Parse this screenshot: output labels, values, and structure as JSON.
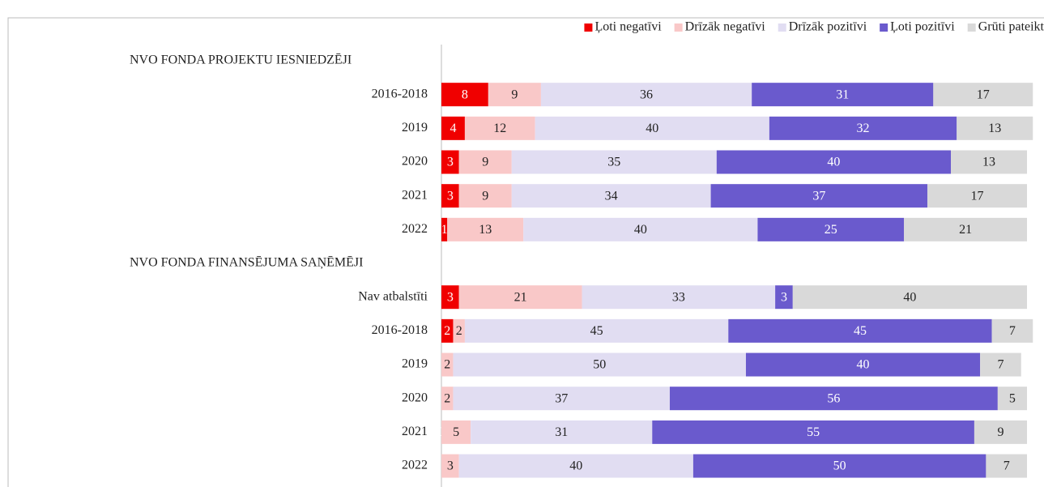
{
  "chart_data": {
    "type": "stacked-bar",
    "categories": [
      "NVO FONDA PROJEKTU IESNIEDZĒJI",
      "2016-2018",
      "2019",
      "2020",
      "2021",
      "2022",
      "NVO FONDA FINANSĒJUMA SAŅĒMĒJI",
      "Nav atbalstīti",
      "2016-2018",
      "2019",
      "2020",
      "2021",
      "2022"
    ],
    "xlim": [
      0,
      100
    ],
    "series": [
      {
        "name": "Ļoti negatīvi",
        "color": "#f00000",
        "values": [
          null,
          8,
          4,
          3,
          3,
          1,
          null,
          3,
          2,
          null,
          null,
          0,
          null
        ]
      },
      {
        "name": "Drīzāk negatīvi",
        "color": "#f9c8c8",
        "values": [
          null,
          9,
          12,
          9,
          9,
          13,
          null,
          21,
          2,
          2,
          2,
          5,
          3
        ]
      },
      {
        "name": "Drīzāk pozitīvi",
        "color": "#e1ddf2",
        "values": [
          null,
          36,
          40,
          35,
          34,
          40,
          null,
          33,
          45,
          50,
          37,
          31,
          40
        ]
      },
      {
        "name": "Ļoti pozitīvi",
        "color": "#6a5acd",
        "values": [
          null,
          31,
          32,
          40,
          37,
          25,
          null,
          3,
          45,
          40,
          56,
          55,
          50
        ]
      },
      {
        "name": "Grūti pateikt",
        "color": "#d9d9d9",
        "values": [
          null,
          17,
          13,
          13,
          17,
          21,
          null,
          40,
          7,
          7,
          5,
          9,
          7
        ]
      }
    ],
    "legend": "top-right"
  }
}
